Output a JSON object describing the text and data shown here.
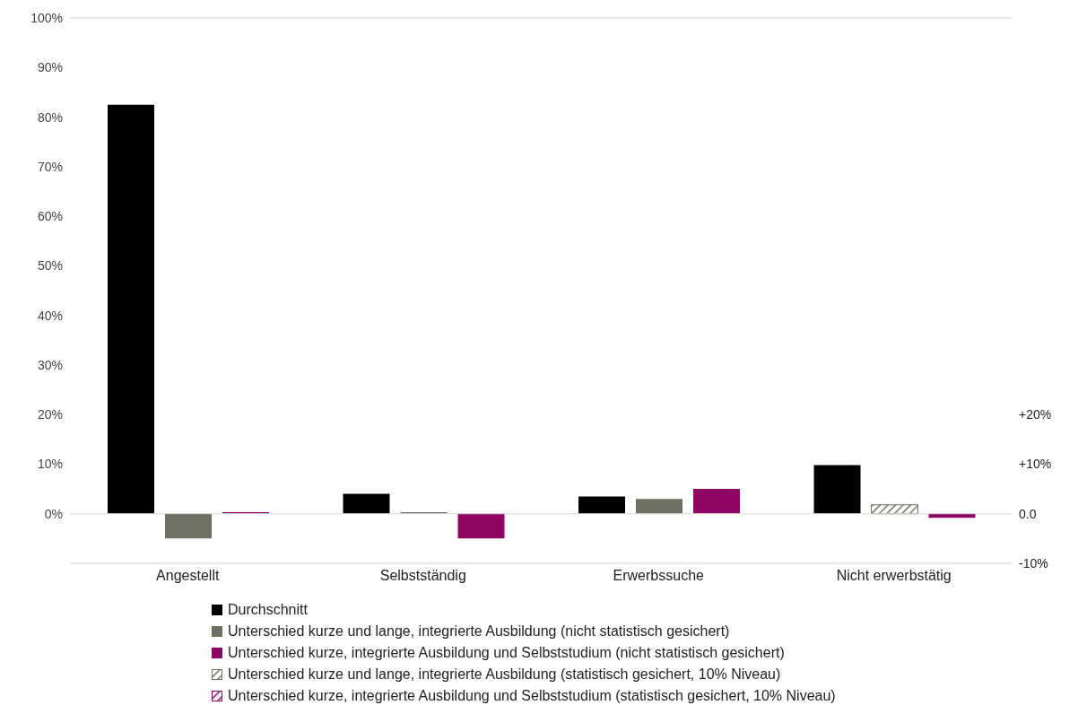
{
  "chart_data": {
    "type": "bar",
    "categories": [
      "Angestellt",
      "Selbstständig",
      "Erwerbssuche",
      "Nicht erwerbstätig"
    ],
    "series": [
      {
        "name": "Durchschnitt",
        "color": "#000000",
        "values": [
          82.5,
          4,
          3.5,
          9.8
        ]
      },
      {
        "name": "Unterschied kurze und lange, integrierte Ausbildung (nicht statistisch gesichert)",
        "color": "#6f6f62",
        "values": [
          -5,
          0.3,
          3,
          null
        ]
      },
      {
        "name": "Unterschied kurze, integrierte Ausbildung und Selbststudium (nicht statistisch gesichert)",
        "color": "#8e0563",
        "values": [
          0.3,
          -5,
          5,
          -0.8
        ]
      },
      {
        "name": "Unterschied kurze und lange, integrierte Ausbildung (statistisch gesichert, 10% Niveau)",
        "color": "#6f6f62",
        "values": [
          null,
          null,
          null,
          1.8
        ]
      },
      {
        "name": "Unterschied kurze, integrierte Ausbildung und Selbststudium (statistisch gesichert, 10% Niveau)",
        "color": "#8e0563",
        "values": [
          null,
          null,
          null,
          null
        ]
      }
    ],
    "ylim": [
      -10,
      100
    ],
    "yticks": [
      {
        "value": -10,
        "label": null
      },
      {
        "value": 0,
        "label": "0%"
      },
      {
        "value": 10,
        "label": "10%"
      },
      {
        "value": 20,
        "label": "20%"
      },
      {
        "value": 30,
        "label": "30%"
      },
      {
        "value": 40,
        "label": "40%"
      },
      {
        "value": 50,
        "label": "50%"
      },
      {
        "value": 60,
        "label": "60%"
      },
      {
        "value": 70,
        "label": "70%"
      },
      {
        "value": 80,
        "label": "80%"
      },
      {
        "value": 90,
        "label": "90%"
      },
      {
        "value": 100,
        "label": "100%"
      }
    ],
    "y2lim": [
      -10,
      100
    ],
    "y2ticks": [
      {
        "value": -10,
        "label": "-10%"
      },
      {
        "value": 0,
        "label": "0.0"
      },
      {
        "value": 10,
        "label": "+10%"
      },
      {
        "value": 20,
        "label": "+20%"
      }
    ],
    "grid": "y",
    "legend": "bottom"
  }
}
